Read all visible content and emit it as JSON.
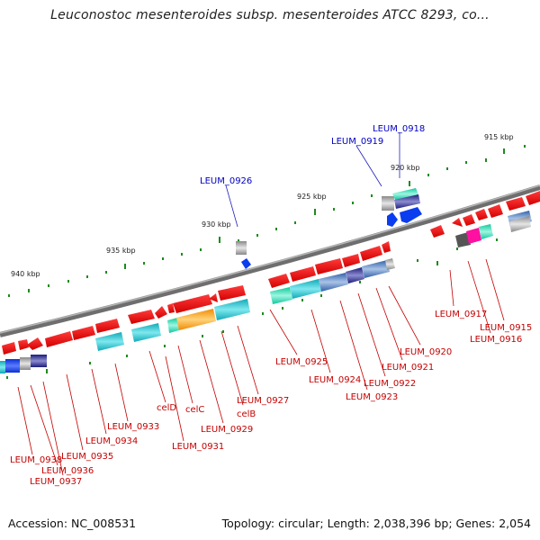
{
  "title": "Leuconostoc mesenteroides subsp. mesenteroides ATCC 8293, co...",
  "footer": {
    "accession": "Accession: NC_008531",
    "summary": "Topology: circular; Length: 2,038,396 bp; Genes: 2,054"
  },
  "scale_ticks": [
    "940 kbp",
    "935 kbp",
    "930 kbp",
    "925 kbp",
    "920 kbp",
    "915 kbp"
  ],
  "gene_labels_red": [
    "LEUM_0917",
    "LEUM_0915",
    "LEUM_0916",
    "LEUM_0920",
    "LEUM_0925",
    "LEUM_0921",
    "LEUM_0924",
    "LEUM_0922",
    "LEUM_0923",
    "LEUM_0927",
    "celB",
    "celD",
    "celC",
    "LEUM_0929",
    "LEUM_0931",
    "LEUM_0933",
    "LEUM_0934",
    "LEUM_0935",
    "LEUM_0938",
    "LEUM_0936",
    "LEUM_0937"
  ],
  "gene_labels_blue": [
    "LEUM_0918",
    "LEUM_0919",
    "LEUM_0926"
  ],
  "colors": {
    "backbone": "#7a7a7a",
    "gene_red": "#e8000b",
    "cog_cyan": "#12c0cc",
    "cog_blue": "#0a3cf0",
    "cog_orange": "#ff9a10",
    "cog_grey": "#9a9a9a",
    "cog_navy": "#2a2a9a",
    "cog_steel": "#3a66b4",
    "cog_teal": "#10e0b0",
    "cog_magenta": "#ff10a0",
    "tick": "#1e8a1e",
    "label_red": "#c40000",
    "label_blue": "#0000c0"
  }
}
